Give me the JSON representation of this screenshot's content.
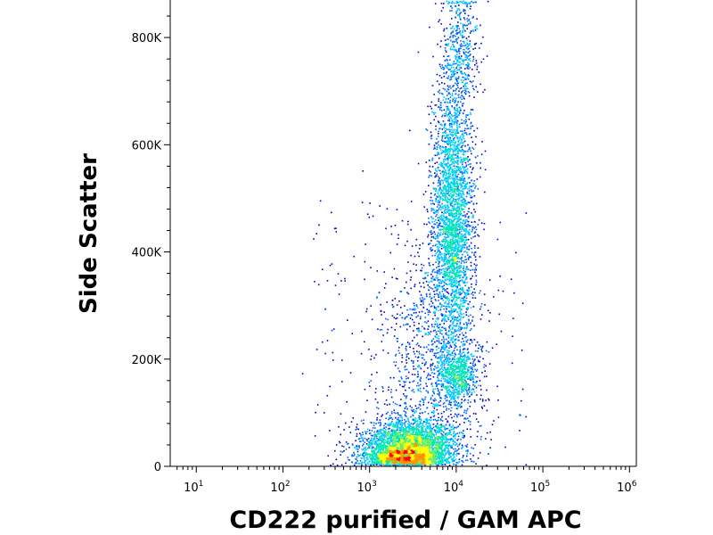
{
  "chart_data": {
    "type": "scatter",
    "title": "",
    "xlabel": "CD222 purified / GAM APC",
    "ylabel": "Side Scatter",
    "x_scale": "log",
    "xlim": [
      5,
      1200000
    ],
    "ylim": [
      0,
      870000
    ],
    "x_ticks": [
      {
        "value": 10,
        "base": "10",
        "exp": "1"
      },
      {
        "value": 100,
        "base": "10",
        "exp": "2"
      },
      {
        "value": 1000,
        "base": "10",
        "exp": "3"
      },
      {
        "value": 10000,
        "base": "10",
        "exp": "4"
      },
      {
        "value": 100000,
        "base": "10",
        "exp": "5"
      },
      {
        "value": 1000000,
        "base": "10",
        "exp": "6"
      }
    ],
    "y_ticks": [
      {
        "value": 0,
        "label": "0"
      },
      {
        "value": 200000,
        "label": "200K"
      },
      {
        "value": 400000,
        "label": "400K"
      },
      {
        "value": 600000,
        "label": "600K"
      },
      {
        "value": 800000,
        "label": "800K"
      }
    ],
    "grid": false,
    "legend": "none",
    "colormap": [
      "#0000c8",
      "#0064ff",
      "#00c8ff",
      "#00e6b4",
      "#64f064",
      "#ffff00",
      "#ff9600",
      "#ff0000"
    ],
    "populations": [
      {
        "x_center": 3000,
        "y_center": 40000,
        "x_spread_decades": 0.28,
        "y_spread": 25000,
        "weight": 0.34
      },
      {
        "x_center": 2200,
        "y_center": 18000,
        "x_spread_decades": 0.22,
        "y_spread": 8000,
        "weight": 0.1
      },
      {
        "x_center": 10000,
        "y_center": 170000,
        "x_spread_decades": 0.12,
        "y_spread": 30000,
        "weight": 0.08
      },
      {
        "x_center": 9000,
        "y_center": 470000,
        "x_spread_decades": 0.12,
        "y_spread": 130000,
        "weight": 0.33
      },
      {
        "x_center": 5000,
        "y_center": 230000,
        "x_spread_decades": 0.3,
        "y_spread": 110000,
        "weight": 0.1
      },
      {
        "x_center": 11000,
        "y_center": 780000,
        "x_spread_decades": 0.1,
        "y_spread": 60000,
        "weight": 0.05
      }
    ]
  }
}
